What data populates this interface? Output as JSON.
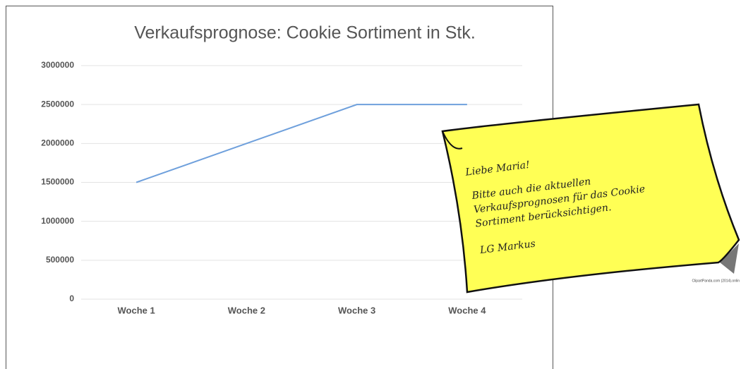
{
  "chart_data": {
    "type": "line",
    "title": "Verkaufsprognose: Cookie Sortiment in Stk.",
    "categories": [
      "Woche 1",
      "Woche 2",
      "Woche 3",
      "Woche 4"
    ],
    "values": [
      1500000,
      2000000,
      2500000,
      2500000
    ],
    "color": "#6fa0dc",
    "ylim": [
      0,
      3000000
    ],
    "yticks": [
      0,
      500000,
      1000000,
      1500000,
      2000000,
      2500000,
      3000000
    ],
    "grid": true
  },
  "note": {
    "greeting": "Liebe Maria!",
    "lines": [
      "Bitte auch die aktuellen",
      "Verkaufsprognosen für das Cookie",
      "Sortiment berücksichtigen."
    ],
    "signature": "LG Markus",
    "credit": "ClipartPanda.com (2014).onlin"
  }
}
